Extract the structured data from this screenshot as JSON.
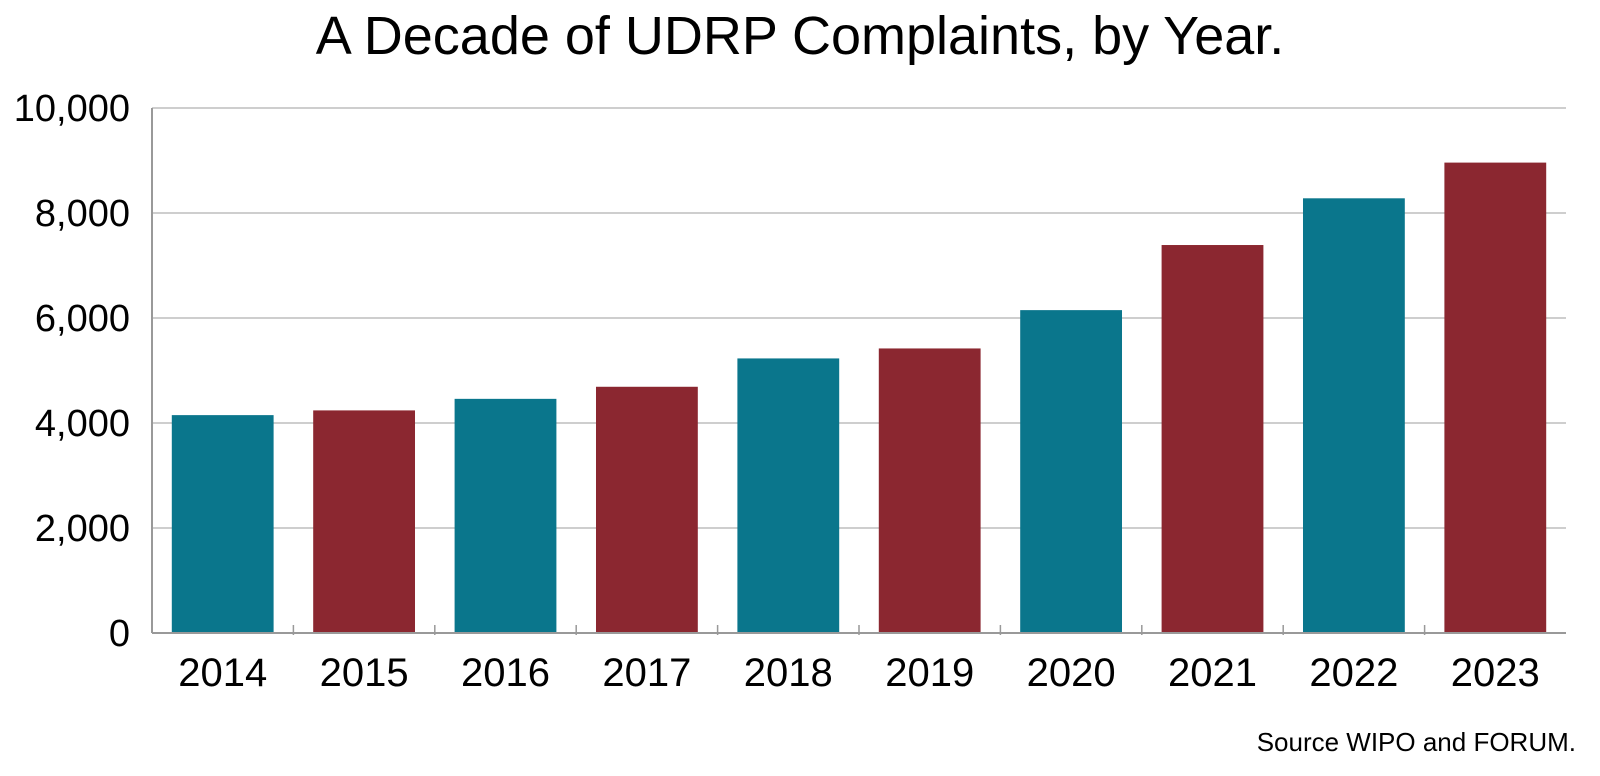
{
  "chart_data": {
    "type": "bar",
    "title": "A Decade of UDRP Complaints, by Year.",
    "source": "Source WIPO and FORUM.",
    "xlabel": "",
    "ylabel": "",
    "categories": [
      "2014",
      "2015",
      "2016",
      "2017",
      "2018",
      "2019",
      "2020",
      "2021",
      "2022",
      "2023"
    ],
    "values": [
      4150,
      4240,
      4460,
      4690,
      5230,
      5420,
      6150,
      7390,
      8280,
      8960
    ],
    "ylim": [
      0,
      10000
    ],
    "yticks": [
      0,
      2000,
      4000,
      6000,
      8000,
      10000
    ],
    "ytick_labels": [
      "0",
      "2,000",
      "4,000",
      "6,000",
      "8,000",
      "10,000"
    ],
    "grid": true,
    "legend": "none",
    "colors": {
      "teal": "#0a768c",
      "maroon": "#8b2730",
      "grid": "#bdbdbd",
      "axis": "#999999"
    },
    "bar_colors": [
      "teal",
      "maroon",
      "teal",
      "maroon",
      "teal",
      "maroon",
      "teal",
      "maroon",
      "teal",
      "maroon"
    ]
  }
}
